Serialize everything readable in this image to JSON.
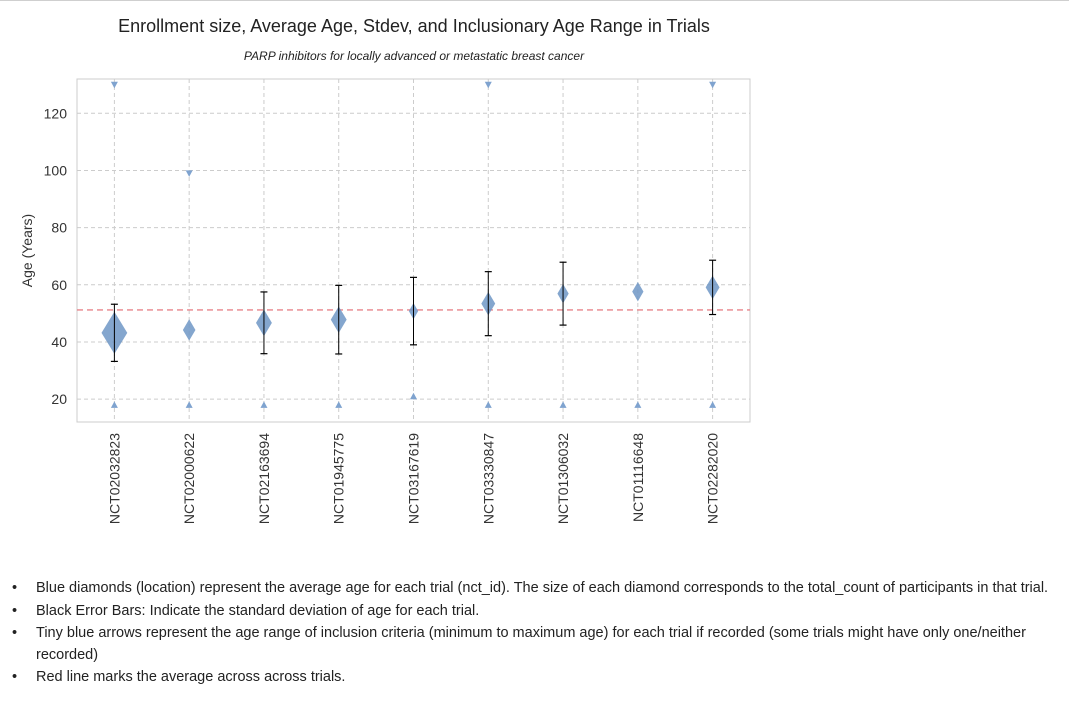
{
  "chart_data": {
    "type": "scatter",
    "title": "Enrollment size, Average Age, Stdev, and Inclusionary Age Range in Trials",
    "subtitle": "PARP inhibitors for locally advanced or metastatic breast cancer",
    "xlabel": "",
    "ylabel": "Age (Years)",
    "ylim": [
      12,
      132
    ],
    "yticks": [
      20,
      40,
      60,
      80,
      100,
      120
    ],
    "grid": true,
    "categories": [
      "NCT02032823",
      "NCT02000622",
      "NCT02163694",
      "NCT01945775",
      "NCT03167619",
      "NCT03330847",
      "NCT01306032",
      "NCT01116648",
      "NCT02282020"
    ],
    "series": [
      {
        "values": [
          43.2,
          44.2,
          46.7,
          47.8,
          50.8,
          53.4,
          56.9,
          57.6,
          59.1
        ],
        "stdev": [
          10,
          null,
          10.8,
          12,
          11.8,
          11.2,
          11,
          null,
          9.5
        ],
        "min_age": [
          18,
          18,
          18,
          18,
          21,
          18,
          18,
          18,
          18
        ],
        "max_age": [
          130,
          99,
          null,
          null,
          null,
          130,
          null,
          null,
          130
        ],
        "size": [
          6,
          2,
          3,
          3,
          1,
          2.4,
          1.6,
          1.6,
          2.4
        ]
      }
    ],
    "reference_line": 51.2,
    "colors": {
      "diamond": "#6f96c6",
      "arrow": "#7fa3cf",
      "errorbar": "#000000",
      "mean_line": "#e8848a",
      "grid": "#cccccc"
    }
  },
  "notes": [
    "Blue diamonds (location) represent the average age for each trial (nct_id). The size of each diamond corresponds to the total_count of participants in that trial.",
    "Black Error Bars: Indicate the standard deviation of age for each trial.",
    "Tiny blue arrows represent the age range of inclusion criteria (minimum to maximum age) for each trial if recorded (some trials might have only one/neither recorded)",
    "Red line marks the average across across trials."
  ]
}
